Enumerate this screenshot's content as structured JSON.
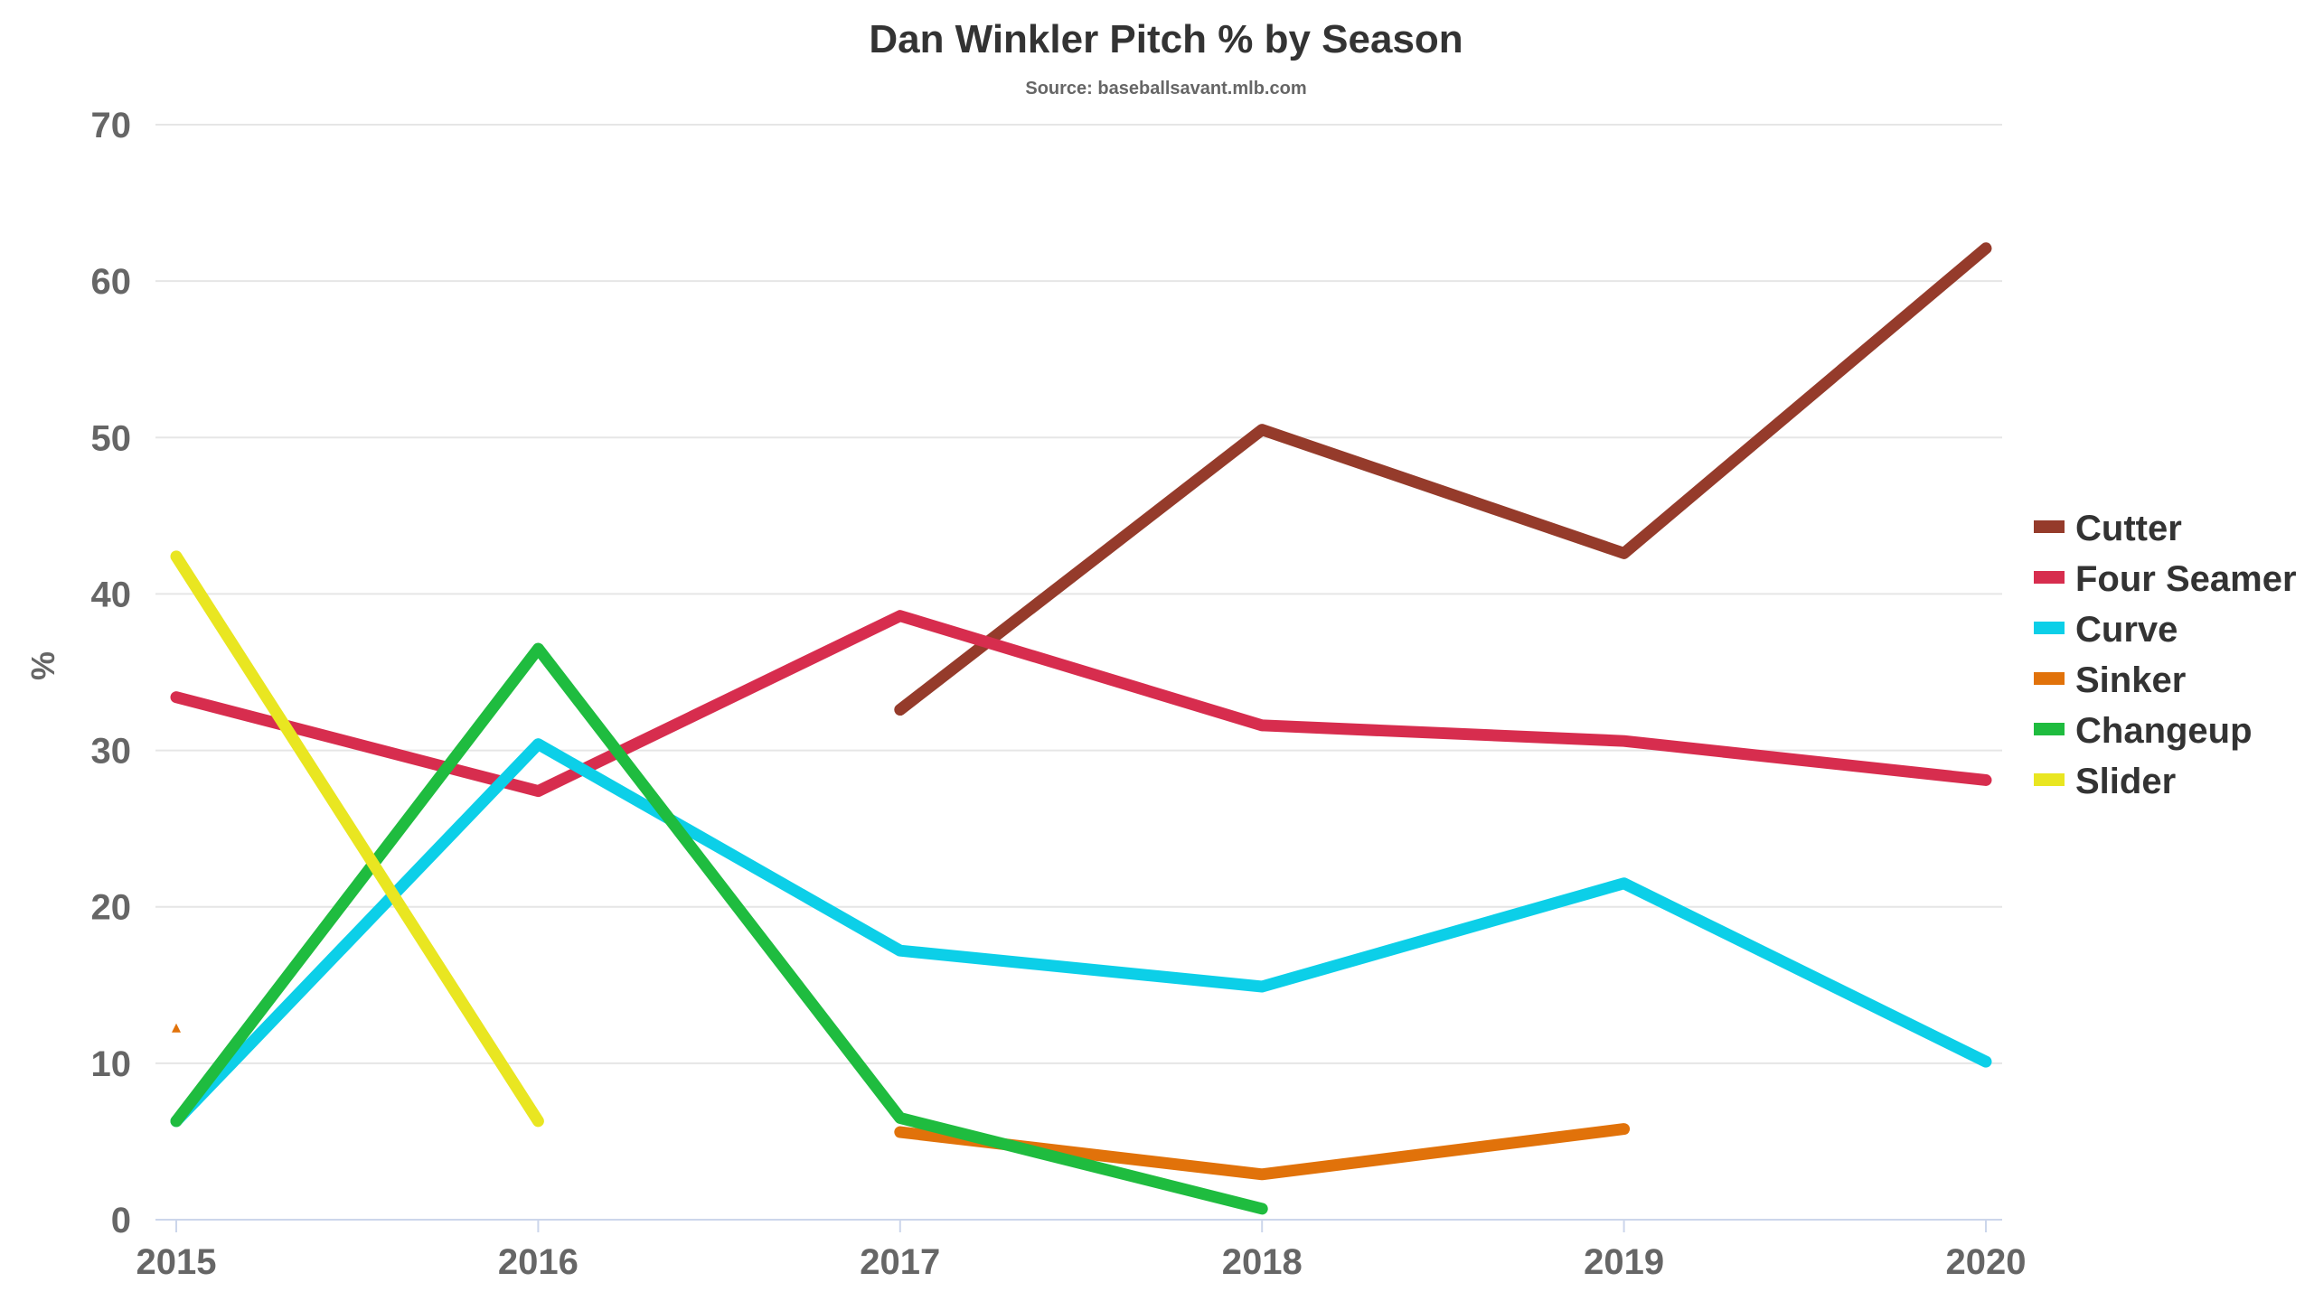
{
  "chart_data": {
    "type": "line",
    "title": "Dan Winkler Pitch % by Season",
    "subtitle": "Source: baseballsavant.mlb.com",
    "xlabel": "",
    "ylabel": "%",
    "categories": [
      "2015",
      "2016",
      "2017",
      "2018",
      "2019",
      "2020"
    ],
    "ylim": [
      0,
      70
    ],
    "yticks": [
      0,
      10,
      20,
      30,
      40,
      50,
      60,
      70
    ],
    "grid": true,
    "legend_position": "right",
    "series": [
      {
        "name": "Cutter",
        "color": "#953b2b",
        "values": [
          null,
          null,
          32.6,
          50.5,
          42.6,
          62.1
        ]
      },
      {
        "name": "Four Seamer",
        "color": "#d72d4e",
        "values": [
          33.4,
          27.4,
          38.6,
          31.6,
          30.6,
          28.1
        ]
      },
      {
        "name": "Curve",
        "color": "#0ccfe8",
        "values": [
          6.3,
          30.4,
          17.2,
          14.9,
          21.5,
          10.1
        ]
      },
      {
        "name": "Sinker",
        "color": "#e1720a",
        "values": [
          12.2,
          null,
          5.6,
          2.9,
          5.8,
          null
        ]
      },
      {
        "name": "Changeup",
        "color": "#1fbc3f",
        "values": [
          6.3,
          36.5,
          6.5,
          0.7,
          null,
          null
        ]
      },
      {
        "name": "Slider",
        "color": "#e9e621",
        "values": [
          42.4,
          6.3,
          null,
          null,
          null,
          null
        ]
      }
    ]
  }
}
